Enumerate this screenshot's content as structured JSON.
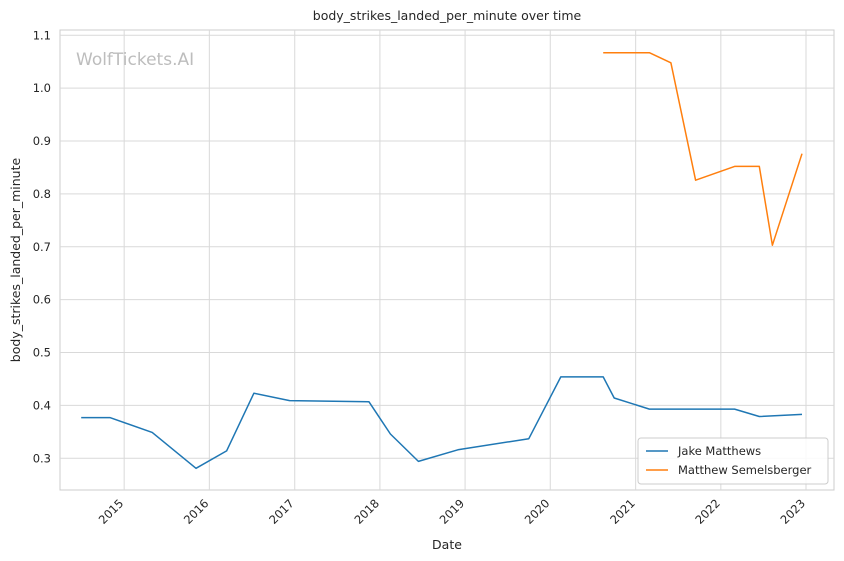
{
  "chart_data": {
    "type": "line",
    "title": "body_strikes_landed_per_minute over time",
    "xlabel": "Date",
    "ylabel": "body_strikes_landed_per_minute",
    "xlim": [
      "2014-04-01",
      "2023-05-01"
    ],
    "ylim": [
      0.24,
      1.11
    ],
    "x_ticks": [
      "2015",
      "2016",
      "2017",
      "2018",
      "2019",
      "2020",
      "2021",
      "2022",
      "2023"
    ],
    "y_ticks": [
      "0.3",
      "0.4",
      "0.5",
      "0.6",
      "0.7",
      "0.8",
      "0.9",
      "1.0",
      "1.1"
    ],
    "grid": true,
    "legend_position": "lower-right",
    "watermark": "WolfTickets.AI",
    "series": [
      {
        "name": "Jake Matthews",
        "color": "#1f77b4",
        "x": [
          "2014-07-01",
          "2014-11-01",
          "2015-05-01",
          "2015-11-05",
          "2016-03-15",
          "2016-07-10",
          "2016-12-10",
          "2017-11-15",
          "2018-02-15",
          "2018-06-15",
          "2018-12-01",
          "2019-10-01",
          "2020-02-15",
          "2020-08-15",
          "2020-10-01",
          "2021-03-01",
          "2022-03-01",
          "2022-06-15",
          "2022-12-15"
        ],
        "values": [
          0.377,
          0.377,
          0.349,
          0.281,
          0.314,
          0.423,
          0.409,
          0.407,
          0.346,
          0.294,
          0.316,
          0.337,
          0.454,
          0.454,
          0.414,
          0.393,
          0.393,
          0.379,
          0.383
        ]
      },
      {
        "name": "Matthew Semelsberger",
        "color": "#ff7f0e",
        "x": [
          "2020-08-15",
          "2021-03-01",
          "2021-06-01",
          "2021-09-15",
          "2022-03-01",
          "2022-06-15",
          "2022-08-10",
          "2022-12-15"
        ],
        "values": [
          1.067,
          1.067,
          1.048,
          0.826,
          0.852,
          0.852,
          0.703,
          0.876
        ]
      }
    ]
  }
}
